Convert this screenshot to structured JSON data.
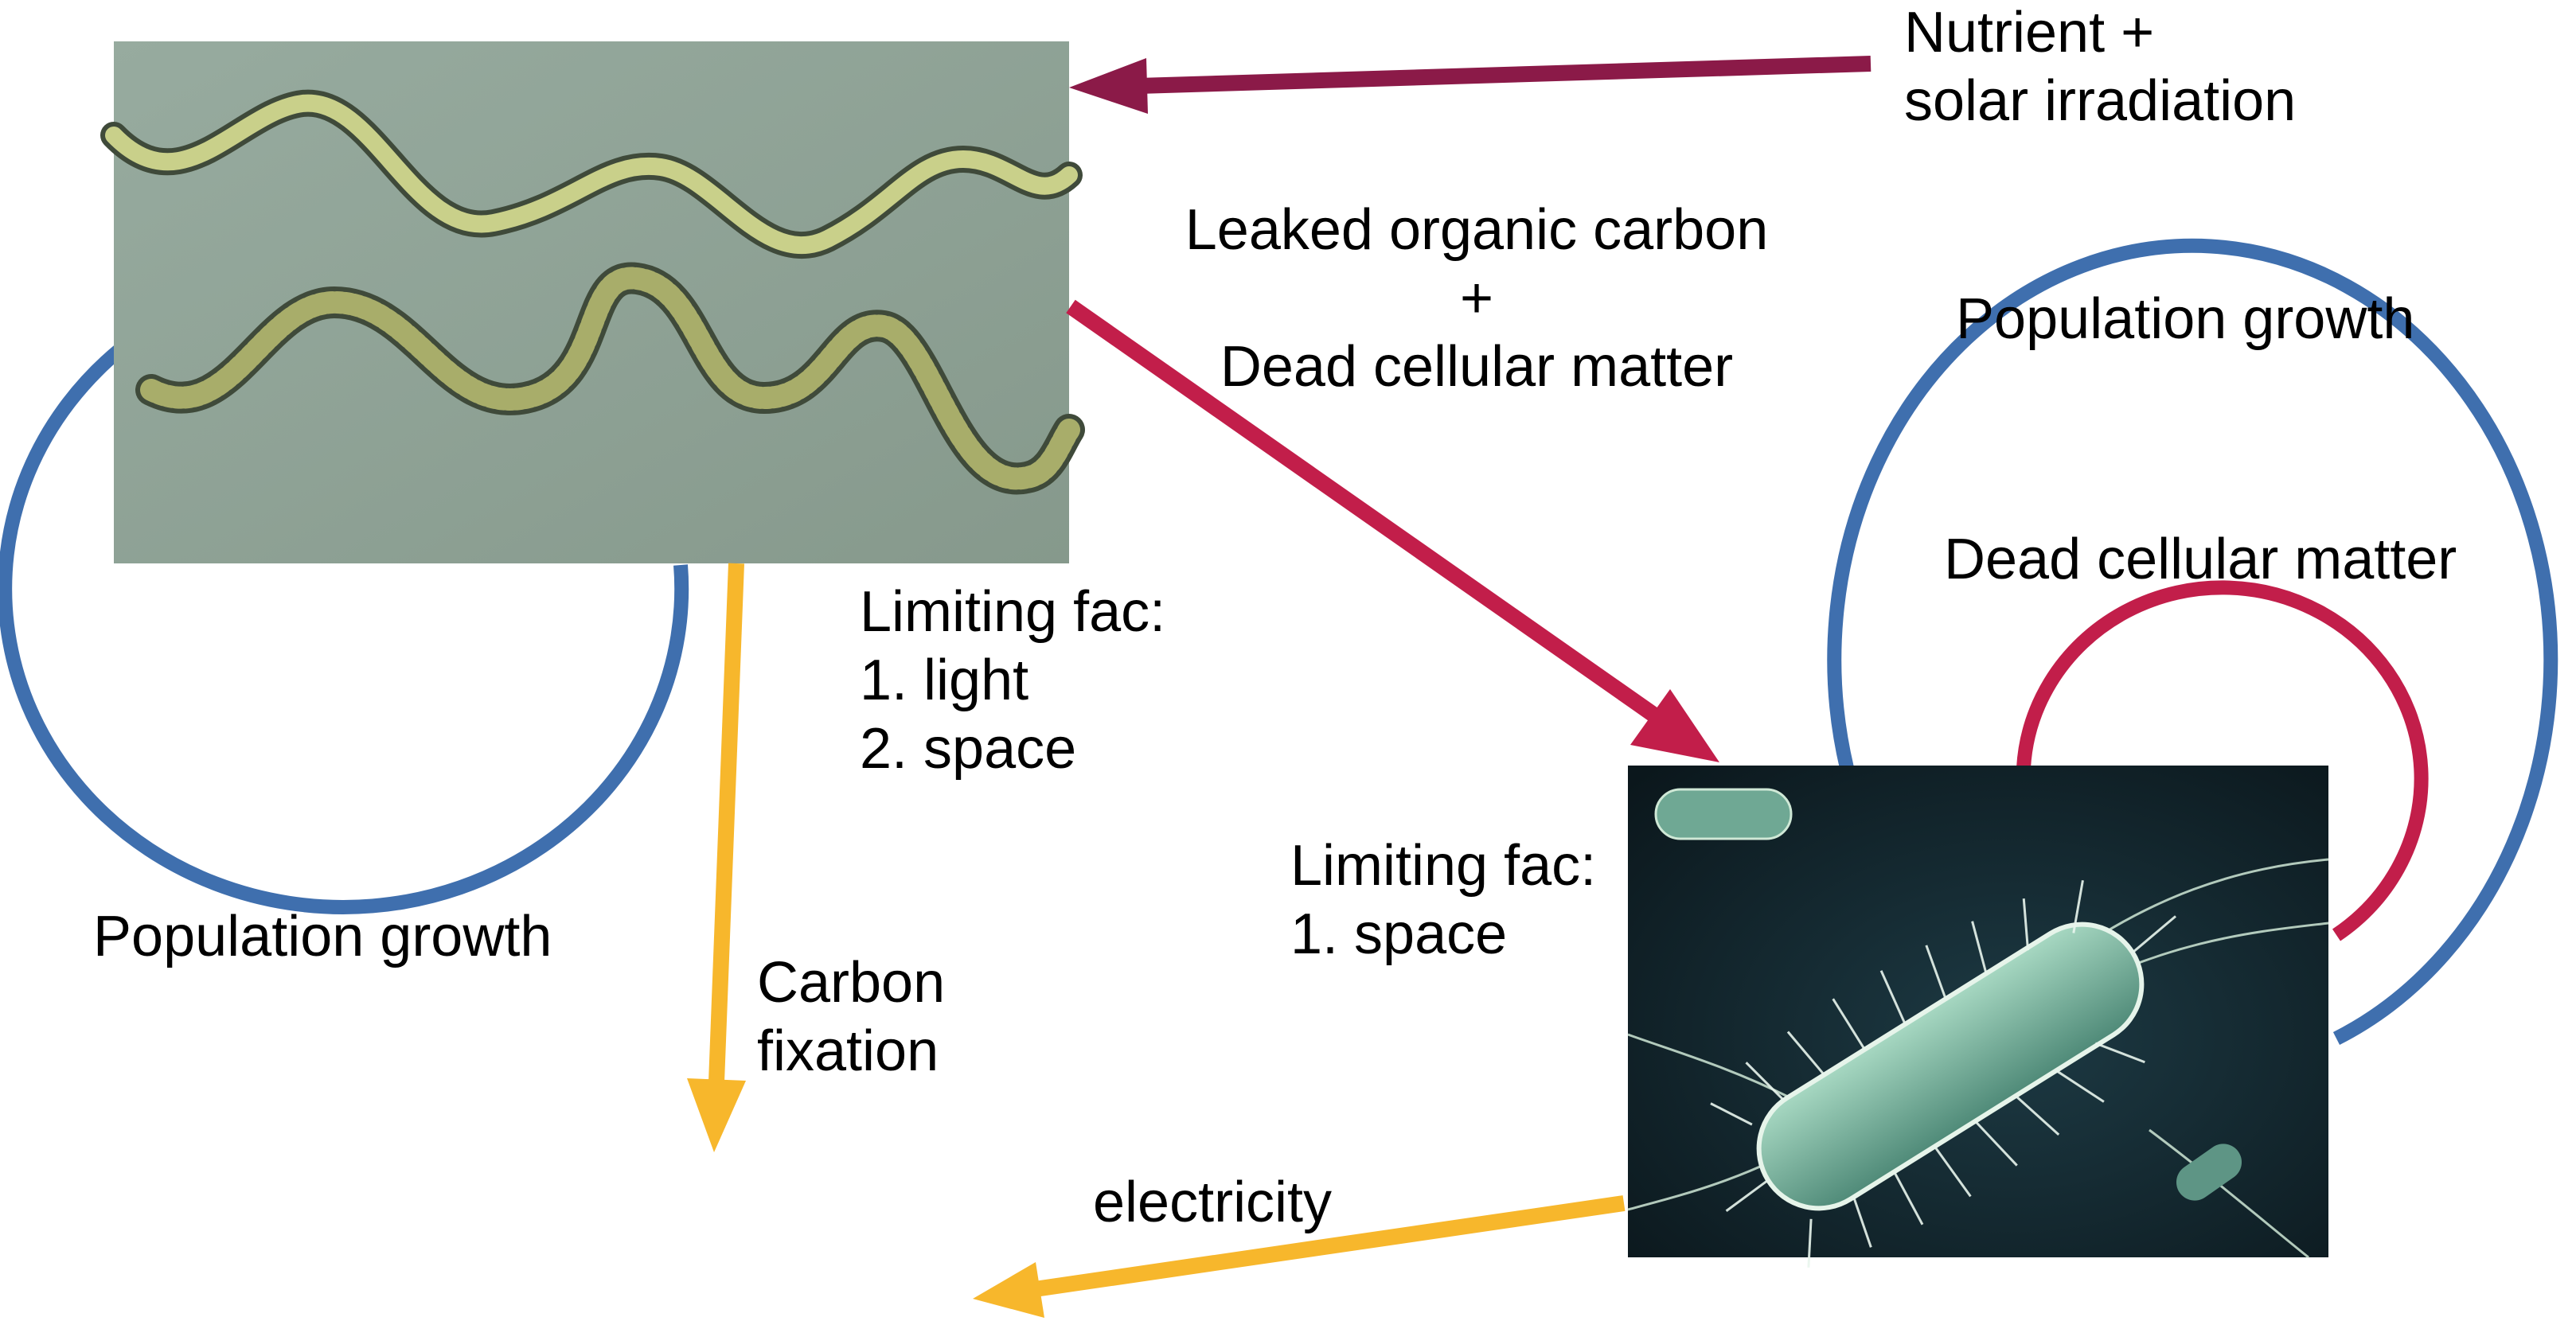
{
  "colors": {
    "loop_blue": "#3f6fae",
    "loop_red": "#c21e4a",
    "arrow_maroon": "#8b1a48",
    "arrow_crimson": "#c21e4a",
    "arrow_amber": "#f7b72c",
    "cyano_bg": "#8ea497",
    "cyano_filament": "#c9d08a",
    "bacteria_bg": "#0f1e24",
    "bacteria_cell": "#7fb7a0"
  },
  "images": {
    "cyanobacteria": "photo of two wavy green filamentous cyanobacteria",
    "bacterium": "micrograph of a rod-shaped bacterium with flagella on dark background"
  },
  "labels": {
    "nutrient_input": "Nutrient +\nsolar irradiation",
    "leaked_carbon": "Leaked organic carbon\n+\nDead cellular matter",
    "cyano_growth": "Population growth",
    "cyano_limits": "Limiting fac:\n1. light\n2. space",
    "carbon_fixation": "Carbon\nfixation",
    "bacteria_growth": "Population growth",
    "bacteria_dead_matter": "Dead cellular matter",
    "bacteria_limits": "Limiting fac:\n1. space",
    "electricity": "electricity"
  }
}
